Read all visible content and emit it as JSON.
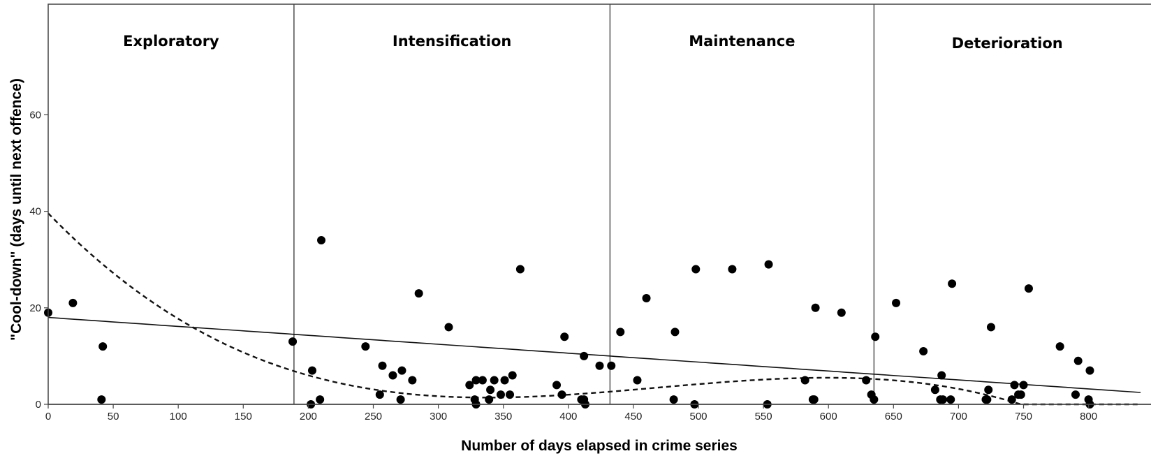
{
  "chart_data": {
    "type": "scatter",
    "xlabel": "Number of days elapsed in crime series",
    "ylabel": "\"Cool-down\" (days until next offence)",
    "xlim": [
      0,
      840
    ],
    "ylim": [
      0,
      79
    ],
    "xticks": [
      0,
      50,
      100,
      150,
      200,
      250,
      300,
      350,
      400,
      450,
      500,
      550,
      600,
      650,
      700,
      750,
      800
    ],
    "yticks": [
      0,
      20,
      40,
      60
    ],
    "grid": false,
    "phases": [
      {
        "label": "Exploratory",
        "start": 0,
        "end": 189
      },
      {
        "label": "Intensification",
        "start": 189,
        "end": 432
      },
      {
        "label": "Maintenance",
        "start": 432,
        "end": 635
      },
      {
        "label": "Deterioration",
        "start": 635,
        "end": 840
      }
    ],
    "phase_boundaries": [
      189,
      432,
      635
    ],
    "points": [
      [
        0,
        19
      ],
      [
        19,
        21
      ],
      [
        41,
        1
      ],
      [
        42,
        12
      ],
      [
        188,
        13
      ],
      [
        202,
        0
      ],
      [
        203,
        7
      ],
      [
        209,
        1
      ],
      [
        210,
        34
      ],
      [
        244,
        12
      ],
      [
        255,
        2
      ],
      [
        257,
        8
      ],
      [
        265,
        6
      ],
      [
        271,
        1
      ],
      [
        272,
        7
      ],
      [
        280,
        5
      ],
      [
        285,
        23
      ],
      [
        308,
        16
      ],
      [
        324,
        4
      ],
      [
        328,
        1
      ],
      [
        329,
        5
      ],
      [
        329,
        0
      ],
      [
        334,
        5
      ],
      [
        339,
        1
      ],
      [
        340,
        3
      ],
      [
        343,
        5
      ],
      [
        348,
        2
      ],
      [
        351,
        5
      ],
      [
        355,
        2
      ],
      [
        357,
        6
      ],
      [
        363,
        28
      ],
      [
        391,
        4
      ],
      [
        395,
        2
      ],
      [
        397,
        14
      ],
      [
        410,
        1
      ],
      [
        412,
        10
      ],
      [
        412,
        1
      ],
      [
        413,
        0
      ],
      [
        424,
        8
      ],
      [
        433,
        8
      ],
      [
        440,
        15
      ],
      [
        453,
        5
      ],
      [
        460,
        22
      ],
      [
        481,
        1
      ],
      [
        482,
        15
      ],
      [
        497,
        0
      ],
      [
        498,
        28
      ],
      [
        526,
        28
      ],
      [
        553,
        0
      ],
      [
        554,
        29
      ],
      [
        582,
        5
      ],
      [
        588,
        1
      ],
      [
        589,
        1
      ],
      [
        590,
        20
      ],
      [
        610,
        19
      ],
      [
        629,
        5
      ],
      [
        633,
        2
      ],
      [
        635,
        1
      ],
      [
        636,
        14
      ],
      [
        652,
        21
      ],
      [
        673,
        11
      ],
      [
        682,
        3
      ],
      [
        686,
        1
      ],
      [
        687,
        6
      ],
      [
        688,
        1
      ],
      [
        694,
        1
      ],
      [
        695,
        25
      ],
      [
        721,
        1
      ],
      [
        722,
        1
      ],
      [
        723,
        3
      ],
      [
        725,
        16
      ],
      [
        741,
        1
      ],
      [
        743,
        4
      ],
      [
        746,
        2
      ],
      [
        748,
        2
      ],
      [
        750,
        4
      ],
      [
        754,
        24
      ],
      [
        778,
        12
      ],
      [
        790,
        2
      ],
      [
        792,
        9
      ],
      [
        800,
        1
      ],
      [
        801,
        7
      ],
      [
        801,
        0
      ]
    ],
    "fit_lines": [
      {
        "style": "solid",
        "model": "linear",
        "coefficients": [
          18.0,
          -0.0185
        ]
      },
      {
        "style": "dashed",
        "model": "cubic",
        "coefficients": [
          39.6,
          -0.2787,
          0.0006455,
          -4.595e-07
        ]
      }
    ]
  }
}
